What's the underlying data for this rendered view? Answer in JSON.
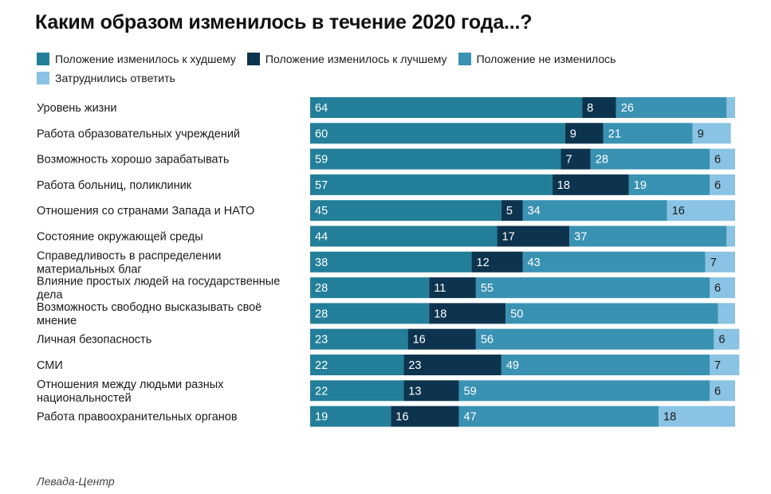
{
  "title": "Каким образом изменилось в течение 2020 года...?",
  "source": "Левада-Центр",
  "colors": {
    "worse": "#237f99",
    "better": "#0d344f",
    "unchanged": "#3a92b3",
    "hard": "#8ac3e3",
    "text_light": "#ffffff",
    "text_dark": "#1a1a1a"
  },
  "chart_data": {
    "type": "bar",
    "orientation": "horizontal",
    "stacked": true,
    "title": "Каким образом изменилось в течение 2020 года...?",
    "legend_position": "top-left",
    "grid": false,
    "xlim": [
      0,
      100
    ],
    "categories": [
      "Уровень жизни",
      "Работа образовательных учреждений",
      "Возможность хорошо зарабатывать",
      "Работа больниц, поликлиник",
      "Отношения со странами Запада и НАТО",
      "Состояние окружающей среды",
      "Справедливость в распределении материальных благ",
      "Влияние простых людей на государственные дела",
      "Возможность свободно высказывать своё мнение",
      "Личная безопасность",
      "СМИ",
      "Отношения между людьми разных национальностей",
      "Работа правоохранительных органов"
    ],
    "series": [
      {
        "name": "Положение изменилось к худшему",
        "key": "worse",
        "values": [
          64,
          60,
          59,
          57,
          45,
          44,
          38,
          28,
          28,
          23,
          22,
          22,
          19
        ]
      },
      {
        "name": "Положение изменилось к лучшему",
        "key": "better",
        "values": [
          8,
          9,
          7,
          18,
          5,
          17,
          12,
          11,
          18,
          16,
          23,
          13,
          16
        ]
      },
      {
        "name": "Положение не изменилось",
        "key": "unchanged",
        "values": [
          26,
          21,
          28,
          19,
          34,
          37,
          43,
          55,
          50,
          56,
          49,
          59,
          47
        ]
      },
      {
        "name": "Затруднились ответить",
        "key": "hard",
        "values": [
          2,
          9,
          6,
          6,
          16,
          2,
          7,
          6,
          4,
          6,
          7,
          6,
          18
        ]
      }
    ],
    "value_labels_visible": [
      [
        true,
        true,
        true,
        false
      ],
      [
        true,
        true,
        true,
        true
      ],
      [
        true,
        true,
        true,
        true
      ],
      [
        true,
        true,
        true,
        true
      ],
      [
        true,
        true,
        true,
        true
      ],
      [
        true,
        true,
        true,
        false
      ],
      [
        true,
        true,
        true,
        true
      ],
      [
        true,
        true,
        true,
        true
      ],
      [
        true,
        true,
        true,
        false
      ],
      [
        true,
        true,
        true,
        true
      ],
      [
        true,
        true,
        true,
        true
      ],
      [
        true,
        true,
        true,
        true
      ],
      [
        true,
        true,
        true,
        true
      ]
    ],
    "category_lines": [
      [
        "Уровень жизни"
      ],
      [
        "Работа образовательных учреждений"
      ],
      [
        "Возможность хорошо зарабатывать"
      ],
      [
        "Работа больниц, поликлиник"
      ],
      [
        "Отношения со странами Запада и НАТО"
      ],
      [
        "Состояние окружающей среды"
      ],
      [
        "Справедливость в распределении",
        "материальных благ"
      ],
      [
        "Влияние простых людей на государственные",
        "дела"
      ],
      [
        "Возможность свободно высказывать своё",
        "мнение"
      ],
      [
        "Личная безопасность"
      ],
      [
        "СМИ"
      ],
      [
        "Отношения между людьми разных",
        "национальностей"
      ],
      [
        "Работа правоохранительных органов"
      ]
    ]
  }
}
